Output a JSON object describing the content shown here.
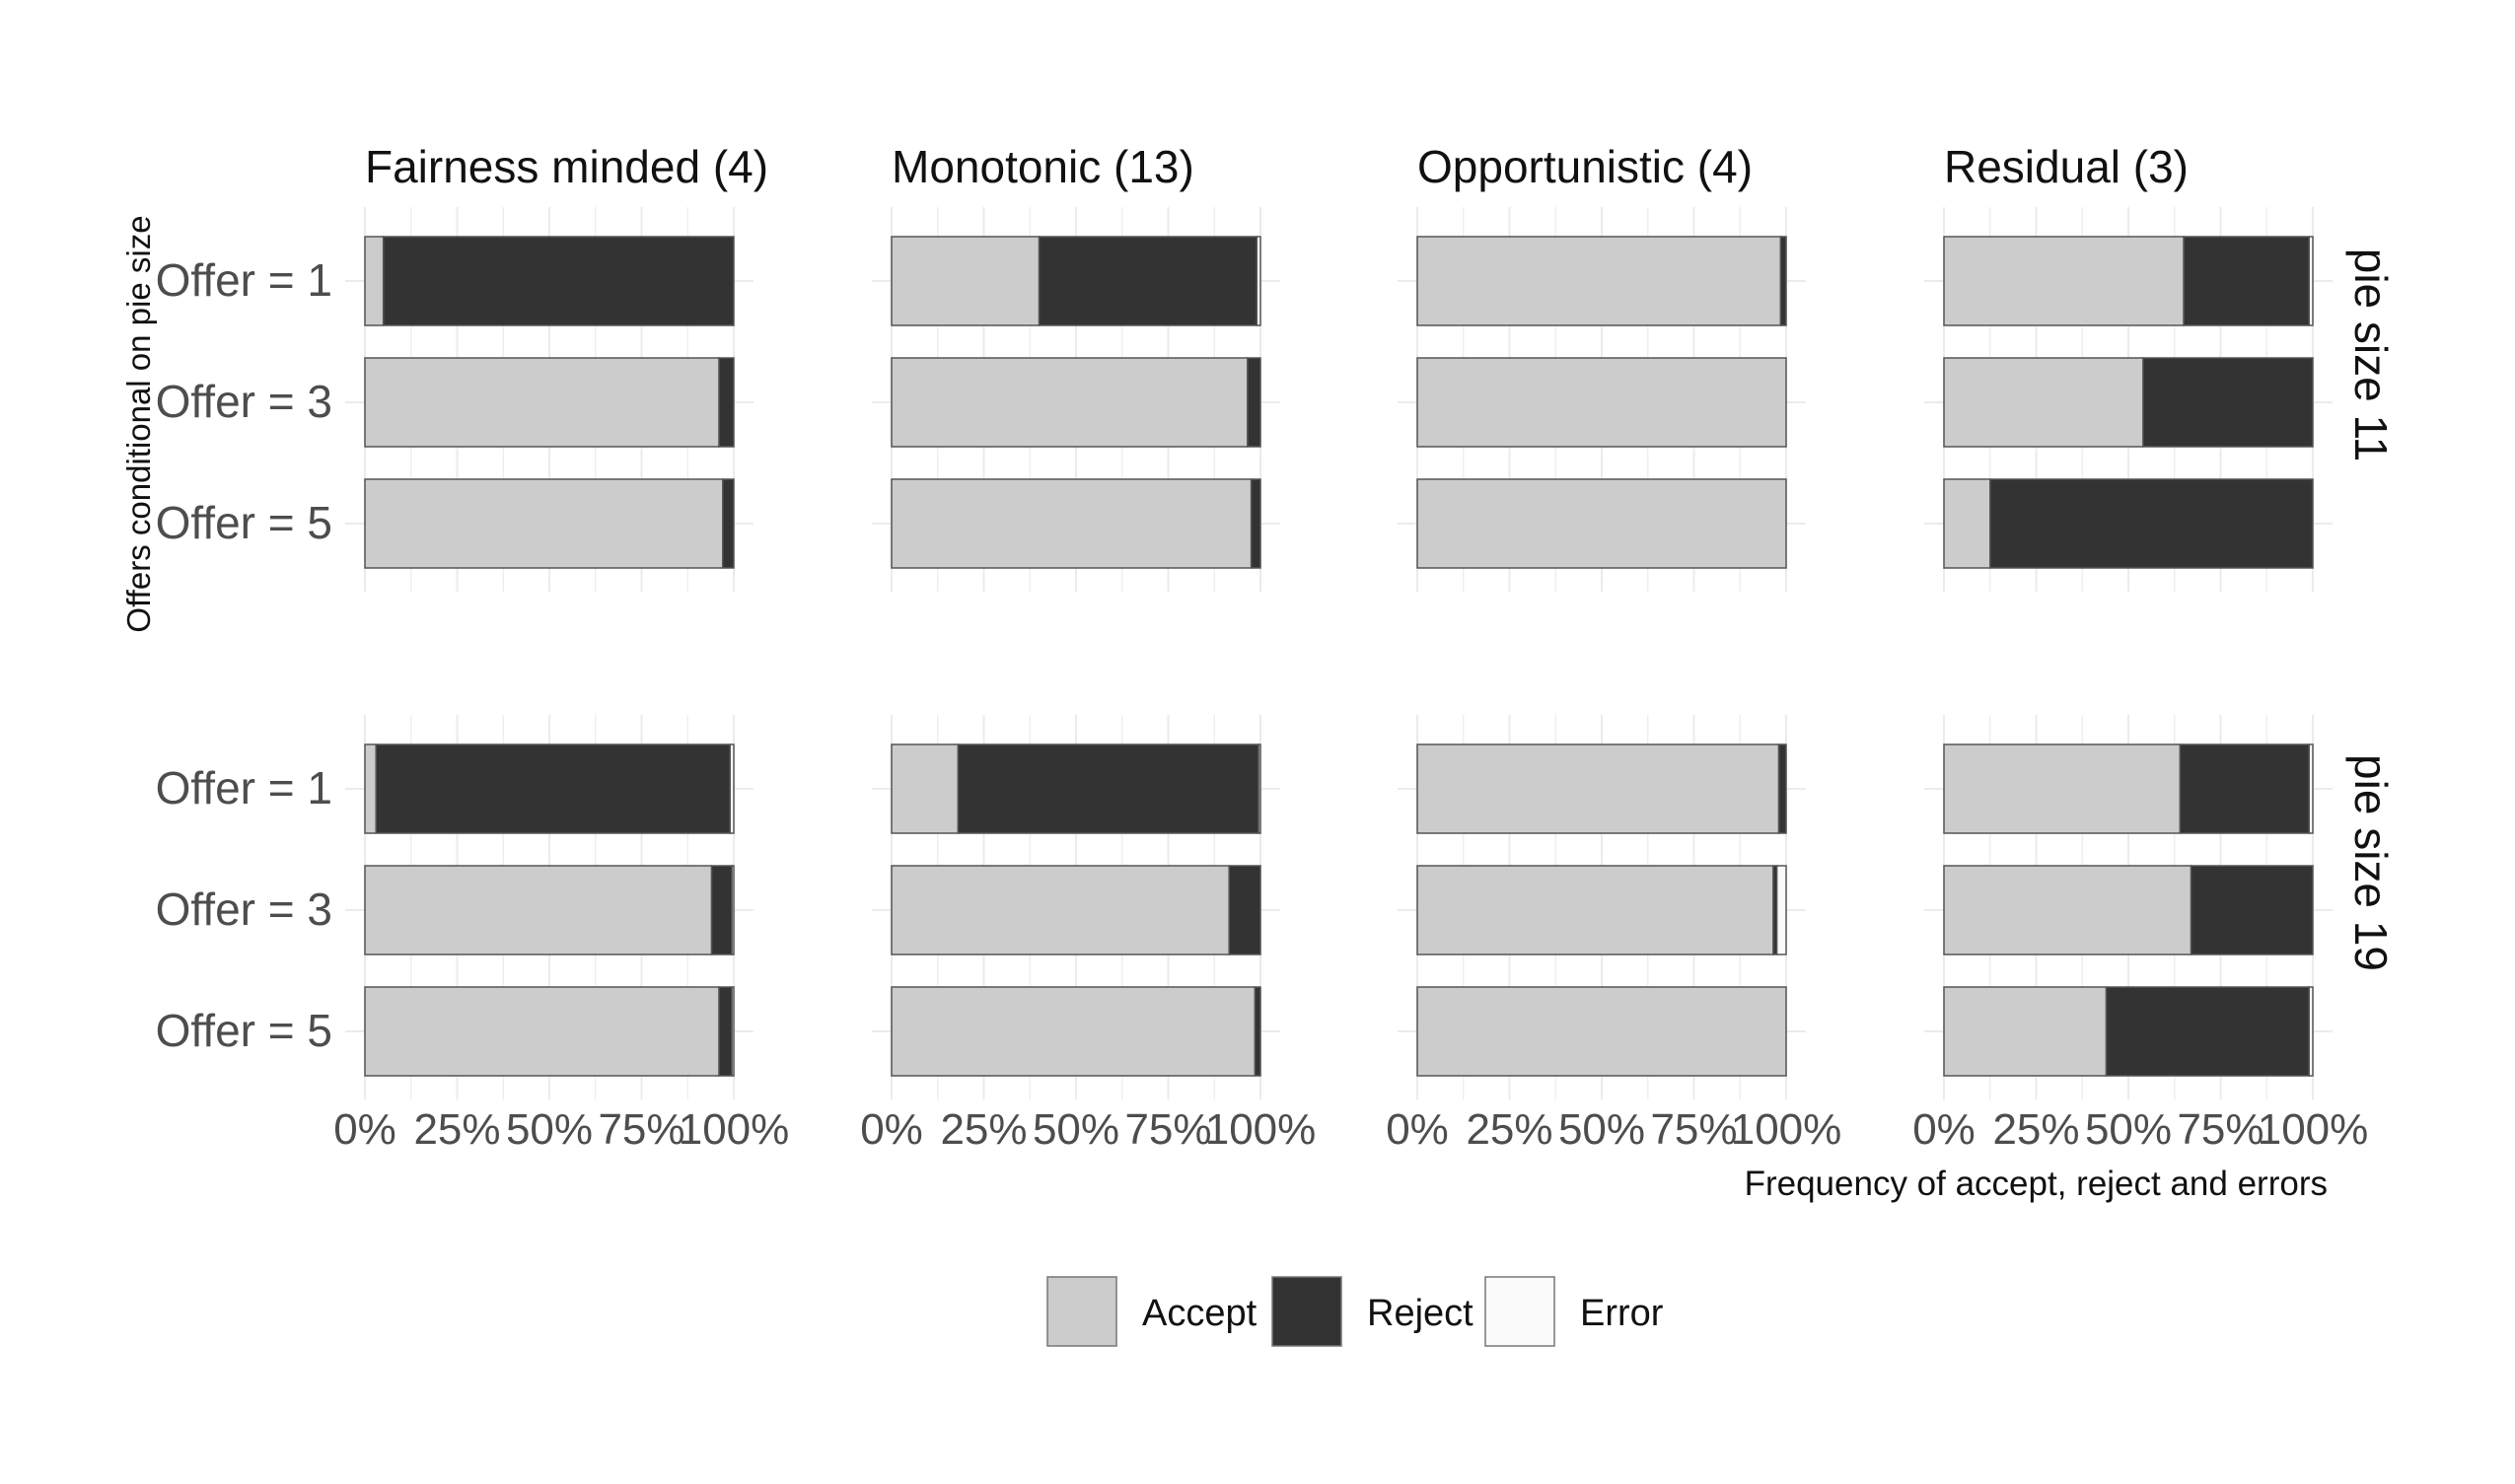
{
  "chart_data": {
    "type": "bar",
    "orientation": "horizontal",
    "stacked": true,
    "xlabel": "Frequency of accept, reject and errors",
    "ylabel": "Offers conditional on pie size",
    "xlim": [
      0,
      100
    ],
    "x_ticks": [
      "0%",
      "25%",
      "50%",
      "75%",
      "100%"
    ],
    "grid": true,
    "legend_position": "bottom",
    "legend": [
      {
        "name": "Accept",
        "color": "#cccccc"
      },
      {
        "name": "Reject",
        "color": "#333333"
      },
      {
        "name": "Error",
        "color": "#fafafa"
      }
    ],
    "columns": [
      "Fairness minded (4)",
      "Monotonic (13)",
      "Opportunistic (4)",
      "Residual (3)"
    ],
    "rows": [
      "pie size 11",
      "pie size 19"
    ],
    "categories": [
      "Offer = 1",
      "Offer = 3",
      "Offer = 5"
    ],
    "panels": [
      {
        "column": "Fairness minded (4)",
        "row": "pie size 11",
        "bars": [
          {
            "category": "Offer = 1",
            "accept": 5,
            "reject": 95,
            "error": 0
          },
          {
            "category": "Offer = 3",
            "accept": 96,
            "reject": 4,
            "error": 0
          },
          {
            "category": "Offer = 5",
            "accept": 97,
            "reject": 3,
            "error": 0
          }
        ]
      },
      {
        "column": "Monotonic (13)",
        "row": "pie size 11",
        "bars": [
          {
            "category": "Offer = 1",
            "accept": 40,
            "reject": 59,
            "error": 1
          },
          {
            "category": "Offer = 3",
            "accept": 96.5,
            "reject": 3.5,
            "error": 0
          },
          {
            "category": "Offer = 5",
            "accept": 97.5,
            "reject": 2.5,
            "error": 0
          }
        ]
      },
      {
        "column": "Opportunistic (4)",
        "row": "pie size 11",
        "bars": [
          {
            "category": "Offer = 1",
            "accept": 98.5,
            "reject": 1.5,
            "error": 0
          },
          {
            "category": "Offer = 3",
            "accept": 100,
            "reject": 0,
            "error": 0
          },
          {
            "category": "Offer = 5",
            "accept": 100,
            "reject": 0,
            "error": 0
          }
        ]
      },
      {
        "column": "Residual (3)",
        "row": "pie size 11",
        "bars": [
          {
            "category": "Offer = 1",
            "accept": 65,
            "reject": 34,
            "error": 1
          },
          {
            "category": "Offer = 3",
            "accept": 54,
            "reject": 46,
            "error": 0
          },
          {
            "category": "Offer = 5",
            "accept": 12.5,
            "reject": 87.5,
            "error": 0
          }
        ]
      },
      {
        "column": "Fairness minded (4)",
        "row": "pie size 19",
        "bars": [
          {
            "category": "Offer = 1",
            "accept": 3,
            "reject": 96,
            "error": 1
          },
          {
            "category": "Offer = 3",
            "accept": 94,
            "reject": 5.5,
            "error": 0.5
          },
          {
            "category": "Offer = 5",
            "accept": 96,
            "reject": 3.5,
            "error": 0.5
          }
        ]
      },
      {
        "column": "Monotonic (13)",
        "row": "pie size 19",
        "bars": [
          {
            "category": "Offer = 1",
            "accept": 18,
            "reject": 81.5,
            "error": 0.5
          },
          {
            "category": "Offer = 3",
            "accept": 91.5,
            "reject": 8.5,
            "error": 0
          },
          {
            "category": "Offer = 5",
            "accept": 98.5,
            "reject": 1.5,
            "error": 0
          }
        ]
      },
      {
        "column": "Opportunistic (4)",
        "row": "pie size 19",
        "bars": [
          {
            "category": "Offer = 1",
            "accept": 98,
            "reject": 2,
            "error": 0
          },
          {
            "category": "Offer = 3",
            "accept": 96.5,
            "reject": 1,
            "error": 2.5
          },
          {
            "category": "Offer = 5",
            "accept": 100,
            "reject": 0,
            "error": 0
          }
        ]
      },
      {
        "column": "Residual (3)",
        "row": "pie size 19",
        "bars": [
          {
            "category": "Offer = 1",
            "accept": 64,
            "reject": 35,
            "error": 1
          },
          {
            "category": "Offer = 3",
            "accept": 67,
            "reject": 33,
            "error": 0
          },
          {
            "category": "Offer = 5",
            "accept": 44,
            "reject": 55,
            "error": 1
          }
        ]
      }
    ]
  }
}
